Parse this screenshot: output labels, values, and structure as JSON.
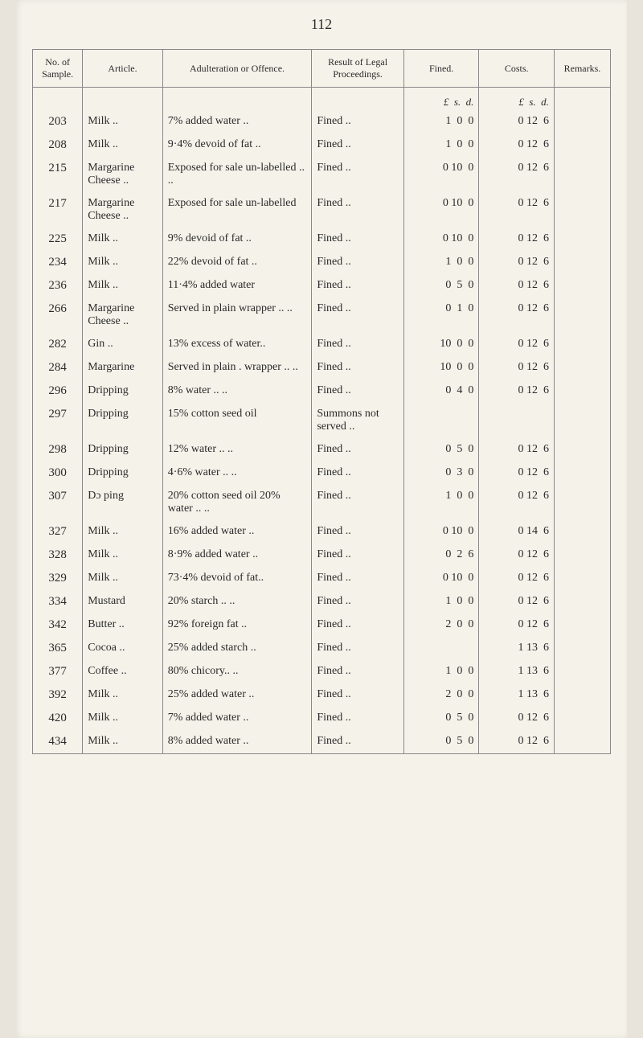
{
  "page_number": "112",
  "headers": {
    "no": "No. of Sample.",
    "article": "Article.",
    "offence": "Adulteration or Offence.",
    "result": "Result of Legal Proceedings.",
    "fined": "Fined.",
    "costs": "Costs.",
    "remarks": "Remarks."
  },
  "currency_header": {
    "fined": "£  s.  d.",
    "costs": "£  s.  d."
  },
  "rows": [
    {
      "no": "203",
      "article": "Milk  ..",
      "offence": "7% added water  ..",
      "result": "Fined      ..",
      "fined": " 1  0  0",
      "costs": " 0 12  6"
    },
    {
      "no": "208",
      "article": "Milk  ..",
      "offence": "9·4% devoid of fat ..",
      "result": "Fined      ..",
      "fined": " 1  0  0",
      "costs": " 0 12  6"
    },
    {
      "no": "215",
      "article": "Margarine Cheese ..",
      "offence": "Exposed for sale un-labelled    ..   ..",
      "result": "Fined      ..",
      "fined": " 0 10  0",
      "costs": " 0 12  6"
    },
    {
      "no": "217",
      "article": "Margarine Cheese ..",
      "offence": "Exposed for sale un-labelled",
      "result": "Fined      ..",
      "fined": " 0 10  0",
      "costs": " 0 12  6"
    },
    {
      "no": "225",
      "article": "Milk  ..",
      "offence": "9% devoid of fat  ..",
      "result": "Fined      ..",
      "fined": " 0 10  0",
      "costs": " 0 12  6"
    },
    {
      "no": "234",
      "article": "Milk  ..",
      "offence": "22% devoid of fat ..",
      "result": "Fined      ..",
      "fined": " 1  0  0",
      "costs": " 0 12  6"
    },
    {
      "no": "236",
      "article": "Milk  ..",
      "offence": "11·4% added water",
      "result": "Fined      ..",
      "fined": " 0  5  0",
      "costs": " 0 12  6"
    },
    {
      "no": "266",
      "article": "Margarine Cheese ..",
      "offence": "Served in plain wrapper ..   ..",
      "result": "Fined      ..",
      "fined": " 0  1  0",
      "costs": " 0 12  6"
    },
    {
      "no": "282",
      "article": "Gin   ..",
      "offence": "13% excess of water..",
      "result": "Fined      ..",
      "fined": "10  0  0",
      "costs": " 0 12  6"
    },
    {
      "no": "284",
      "article": "Margarine",
      "offence": "Served in plain . wrapper ..  ..",
      "result": "Fined      ..",
      "fined": "10  0  0",
      "costs": " 0 12  6"
    },
    {
      "no": "296",
      "article": "Dripping",
      "offence": "8% water  ..   ..",
      "result": "Fined      ..",
      "fined": " 0  4  0",
      "costs": " 0 12  6"
    },
    {
      "no": "297",
      "article": "Dripping",
      "offence": "15% cotton seed oil",
      "result": "Summons not served   ..",
      "fined": "",
      "costs": ""
    },
    {
      "no": "298",
      "article": "Dripping",
      "offence": "12% water ..   ..",
      "result": "Fined      ..",
      "fined": " 0  5  0",
      "costs": " 0 12  6"
    },
    {
      "no": "300",
      "article": "Dripping",
      "offence": "4·6% water ..   ..",
      "result": "Fined      ..",
      "fined": " 0  3  0",
      "costs": " 0 12  6"
    },
    {
      "no": "307",
      "article": "Dɔ  ping",
      "offence": "20% cotton seed oil 20% water ..   ..",
      "result": "Fined      ..",
      "fined": " 1  0  0",
      "costs": " 0 12  6"
    },
    {
      "no": "327",
      "article": "Milk  ..",
      "offence": "16% added water ..",
      "result": "Fined      ..",
      "fined": " 0 10  0",
      "costs": " 0 14  6"
    },
    {
      "no": "328",
      "article": "Milk  ..",
      "offence": "8·9% added water ..",
      "result": "Fined      ..",
      "fined": " 0  2  6",
      "costs": " 0 12  6"
    },
    {
      "no": "329",
      "article": "Milk  ..",
      "offence": "73·4% devoid of fat..",
      "result": "Fined      ..",
      "fined": " 0 10  0",
      "costs": " 0 12  6"
    },
    {
      "no": "334",
      "article": "Mustard",
      "offence": "20% starch ..   ..",
      "result": "Fined      ..",
      "fined": " 1  0  0",
      "costs": " 0 12  6"
    },
    {
      "no": "342",
      "article": "Butter ..",
      "offence": "92% foreign fat  ..",
      "result": "Fined      ..",
      "fined": " 2  0  0",
      "costs": " 0 12  6"
    },
    {
      "no": "365",
      "article": "Cocoa ..",
      "offence": "25% added starch ..",
      "result": "Fined      ..",
      "fined": "",
      "costs": " 1 13  6"
    },
    {
      "no": "377",
      "article": "Coffee ..",
      "offence": "80% chicory..   ..",
      "result": "Fined      ..",
      "fined": " 1  0  0",
      "costs": " 1 13  6"
    },
    {
      "no": "392",
      "article": "Milk  ..",
      "offence": "25% added water ..",
      "result": "Fined      ..",
      "fined": " 2  0  0",
      "costs": " 1 13  6"
    },
    {
      "no": "420",
      "article": "Milk  ..",
      "offence": "7% added water  ..",
      "result": "Fined      ..",
      "fined": " 0  5  0",
      "costs": " 0 12  6"
    },
    {
      "no": "434",
      "article": "Milk  ..",
      "offence": "8% added water  ..",
      "result": "Fined      ..",
      "fined": " 0  5  0",
      "costs": " 0 12  6"
    }
  ]
}
